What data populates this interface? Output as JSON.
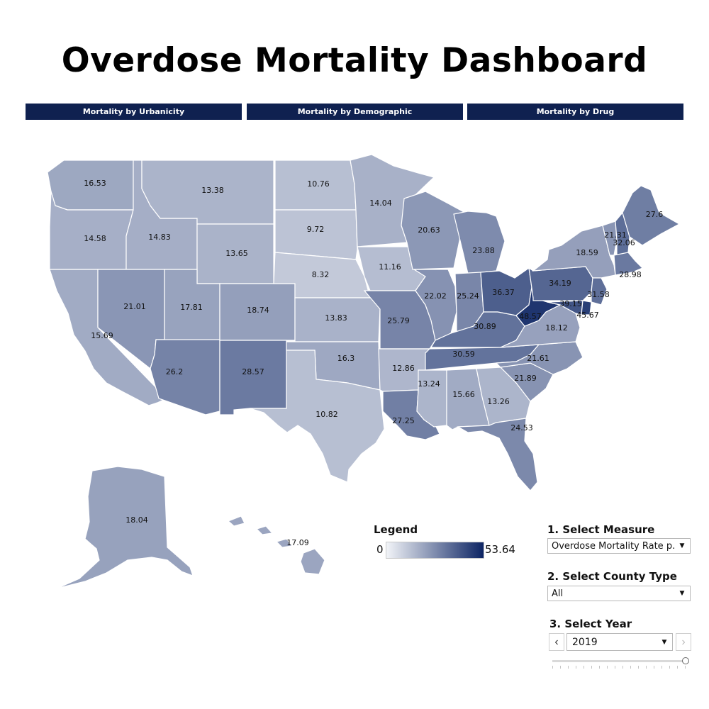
{
  "title": "Overdose Mortality Dashboard",
  "nav": {
    "urbanicity": "Mortality by Urbanicity",
    "demographic": "Mortality by Demographic",
    "drug": "Mortality by Drug"
  },
  "legend": {
    "title": "Legend",
    "min": "0",
    "max": "53.64",
    "min_value": 0,
    "max_value": 53.64,
    "color_low": "#f2f4f8",
    "color_high": "#0c2463"
  },
  "controls": {
    "measure_label": "1. Select Measure",
    "measure_value": "Overdose Mortality Rate p...",
    "county_label": "2. Select County Type",
    "county_value": "All",
    "year_label": "3. Select Year",
    "year_value": "2019",
    "prev_icon": "chevron-left-icon",
    "next_icon": "chevron-right-icon",
    "dropdown_icon": "caret-down-icon"
  },
  "states": [
    {
      "id": "WA",
      "value": "16.53"
    },
    {
      "id": "OR",
      "value": "14.58"
    },
    {
      "id": "CA",
      "value": "15.69"
    },
    {
      "id": "ID",
      "value": "14.83"
    },
    {
      "id": "NV",
      "value": "21.01"
    },
    {
      "id": "MT",
      "value": "13.38"
    },
    {
      "id": "WY",
      "value": "13.65"
    },
    {
      "id": "UT",
      "value": "17.81"
    },
    {
      "id": "AZ",
      "value": "26.2"
    },
    {
      "id": "CO",
      "value": "18.74"
    },
    {
      "id": "NM",
      "value": "28.57"
    },
    {
      "id": "ND",
      "value": "10.76"
    },
    {
      "id": "SD",
      "value": "9.72"
    },
    {
      "id": "NE",
      "value": "8.32"
    },
    {
      "id": "KS",
      "value": "13.83"
    },
    {
      "id": "OK",
      "value": "16.3"
    },
    {
      "id": "TX",
      "value": "10.82"
    },
    {
      "id": "MN",
      "value": "14.04"
    },
    {
      "id": "IA",
      "value": "11.16"
    },
    {
      "id": "MO",
      "value": "25.79"
    },
    {
      "id": "AR",
      "value": "12.86"
    },
    {
      "id": "LA",
      "value": "27.25"
    },
    {
      "id": "WI",
      "value": "20.63"
    },
    {
      "id": "IL",
      "value": "22.02"
    },
    {
      "id": "MI",
      "value": "23.88"
    },
    {
      "id": "IN",
      "value": "25.24"
    },
    {
      "id": "OH",
      "value": "36.37"
    },
    {
      "id": "KY",
      "value": "30.89"
    },
    {
      "id": "TN",
      "value": "30.59"
    },
    {
      "id": "MS",
      "value": "13.24"
    },
    {
      "id": "AL",
      "value": "15.66"
    },
    {
      "id": "GA",
      "value": "13.26"
    },
    {
      "id": "FL",
      "value": "24.53"
    },
    {
      "id": "SC",
      "value": "21.89"
    },
    {
      "id": "NC",
      "value": "21.61"
    },
    {
      "id": "VA",
      "value": "18.12"
    },
    {
      "id": "WV",
      "value": "48.57"
    },
    {
      "id": "PA",
      "value": "34.19"
    },
    {
      "id": "NY",
      "value": "18.59"
    },
    {
      "id": "VT",
      "value": "21.31"
    },
    {
      "id": "NH",
      "value": "32.06"
    },
    {
      "id": "ME",
      "value": "27.6"
    },
    {
      "id": "MA",
      "value": "28.98"
    },
    {
      "id": "NJ",
      "value": "31.58"
    },
    {
      "id": "MD",
      "value": "39.15"
    },
    {
      "id": "DE",
      "value": "45.67"
    },
    {
      "id": "AK",
      "value": "18.04"
    },
    {
      "id": "HI",
      "value": "17.09"
    }
  ]
}
